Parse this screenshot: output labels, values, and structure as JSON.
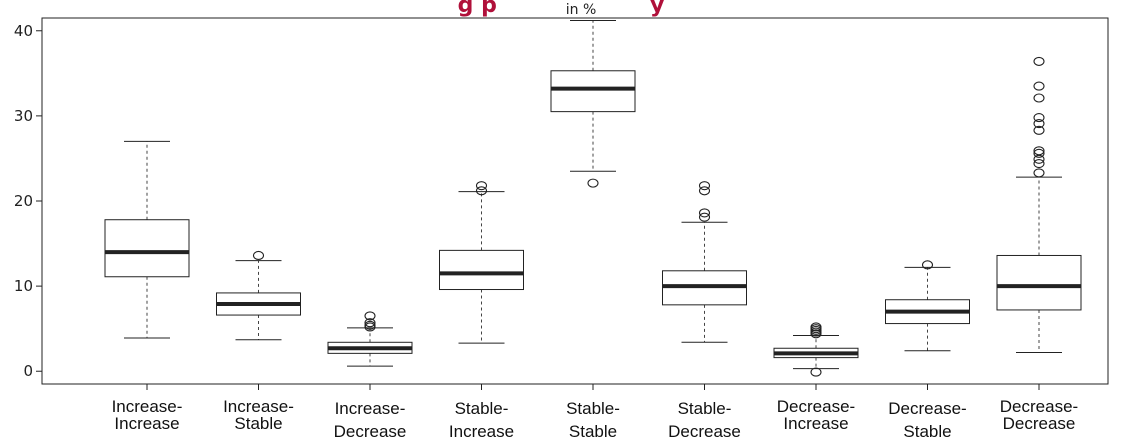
{
  "chart_data": {
    "type": "boxplot",
    "title": "g p                    y",
    "subtitle": "in %",
    "xlabel": "",
    "ylabel": "",
    "ylim": [
      -1.5,
      41.5
    ],
    "yticks": [
      0,
      10,
      20,
      30,
      40
    ],
    "grid": false,
    "categories": [
      {
        "line1": "Increase-",
        "line2": "Increase"
      },
      {
        "line1": "Increase-",
        "line2": "Stable"
      },
      {
        "line1": "Increase-",
        "line2": "Decrease"
      },
      {
        "line1": "Stable-",
        "line2": "Increase"
      },
      {
        "line1": "Stable-",
        "line2": "Stable"
      },
      {
        "line1": "Stable-",
        "line2": "Decrease"
      },
      {
        "line1": "Decrease-",
        "line2": "Increase"
      },
      {
        "line1": "Decrease-",
        "line2": "Stable"
      },
      {
        "line1": "Decrease-",
        "line2": "Decrease"
      }
    ],
    "boxes": [
      {
        "whisker_low": 3.9,
        "q1": 11.1,
        "median": 14.0,
        "q3": 17.8,
        "whisker_high": 27.0,
        "outliers": []
      },
      {
        "whisker_low": 3.7,
        "q1": 6.6,
        "median": 7.9,
        "q3": 9.2,
        "whisker_high": 13.0,
        "outliers": [
          13.6
        ]
      },
      {
        "whisker_low": 0.6,
        "q1": 2.1,
        "median": 2.7,
        "q3": 3.4,
        "whisker_high": 5.1,
        "outliers": [
          5.2,
          5.4,
          5.7,
          6.5
        ]
      },
      {
        "whisker_low": 3.3,
        "q1": 9.6,
        "median": 11.5,
        "q3": 14.2,
        "whisker_high": 21.1,
        "outliers": [
          21.2,
          21.8
        ]
      },
      {
        "whisker_low": 23.5,
        "q1": 30.5,
        "median": 33.2,
        "q3": 35.3,
        "whisker_high": 41.2,
        "outliers": [
          22.1
        ]
      },
      {
        "whisker_low": 3.4,
        "q1": 7.8,
        "median": 10.0,
        "q3": 11.8,
        "whisker_high": 17.5,
        "outliers": [
          18.1,
          18.6,
          21.2,
          21.8
        ]
      },
      {
        "whisker_low": 0.3,
        "q1": 1.6,
        "median": 2.1,
        "q3": 2.7,
        "whisker_high": 4.2,
        "outliers": [
          4.4,
          4.6,
          4.8,
          5.0,
          5.2,
          -0.1
        ]
      },
      {
        "whisker_low": 2.4,
        "q1": 5.6,
        "median": 7.0,
        "q3": 8.4,
        "whisker_high": 12.2,
        "outliers": [
          12.5
        ]
      },
      {
        "whisker_low": 2.2,
        "q1": 7.2,
        "median": 10.0,
        "q3": 13.6,
        "whisker_high": 22.8,
        "outliers": [
          23.3,
          24.4,
          24.9,
          25.6,
          25.9,
          28.3,
          29.1,
          29.8,
          32.1,
          33.5,
          36.4
        ]
      }
    ]
  }
}
